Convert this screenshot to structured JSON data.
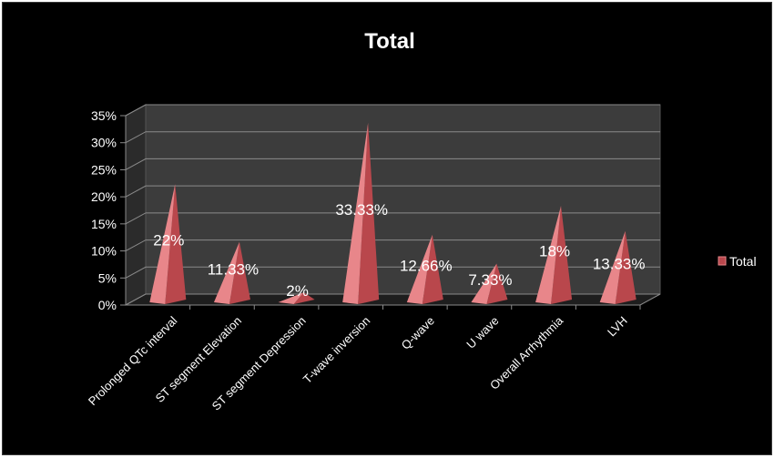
{
  "chart_data": {
    "type": "bar",
    "style": "3d-pyramid",
    "title": "Total",
    "categories": [
      "Prolonged QTc interval",
      "ST segment Elevation",
      "ST segment Depression",
      "T-wave inversion",
      "Q-wave",
      "U wave",
      "Overall Arrhythmia",
      "LVH"
    ],
    "series": [
      {
        "name": "Total",
        "values": [
          22,
          11.33,
          2,
          33.33,
          12.66,
          7.33,
          18,
          13.33
        ]
      }
    ],
    "data_labels": [
      "22%",
      "11.33%",
      "2%",
      "33.33%",
      "12.66%",
      "7.33%",
      "18%",
      "13.33%"
    ],
    "y_ticks": [
      "0%",
      "5%",
      "10%",
      "15%",
      "20%",
      "25%",
      "30%",
      "35%"
    ],
    "ylim": [
      0,
      35
    ],
    "y_unit": "%",
    "grid": true,
    "legend_position": "right",
    "colors": {
      "background": "#000000",
      "plot_back_wall": "#3c3c3c",
      "gridline": "#8a8a8a",
      "bar_light": "#e8868a",
      "bar_dark": "#b9474c",
      "text": "#ffffff"
    }
  }
}
